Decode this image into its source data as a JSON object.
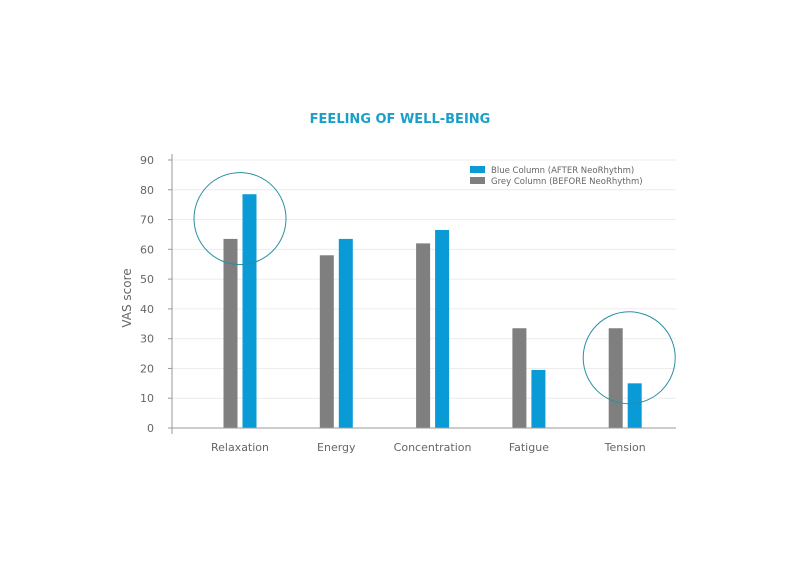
{
  "chart_data": {
    "type": "bar",
    "title": "FEELING OF WELL-BEING",
    "xlabel": "",
    "ylabel": "VAS score",
    "ylim": [
      0,
      90
    ],
    "yticks": [
      0,
      10,
      20,
      30,
      40,
      50,
      60,
      70,
      80,
      90
    ],
    "categories": [
      "Relaxation",
      "Energy",
      "Concentration",
      "Fatigue",
      "Tension"
    ],
    "series": [
      {
        "name": "Grey Column (BEFORE NeoRhythm)",
        "color": "#7f7f7f",
        "values": [
          63.5,
          58,
          62,
          33.5,
          33.5
        ]
      },
      {
        "name": "Blue Column (AFTER NeoRhythm)",
        "color": "#0a9bd6",
        "values": [
          78.5,
          63.5,
          66.5,
          19.5,
          15
        ]
      }
    ],
    "legend_order": [
      1,
      0
    ],
    "legend_position": "top-right",
    "grid": true,
    "highlighted_categories": [
      "Relaxation",
      "Tension"
    ],
    "title_color": "#1aa0c8",
    "highlight_color": "#2a8fa0"
  }
}
